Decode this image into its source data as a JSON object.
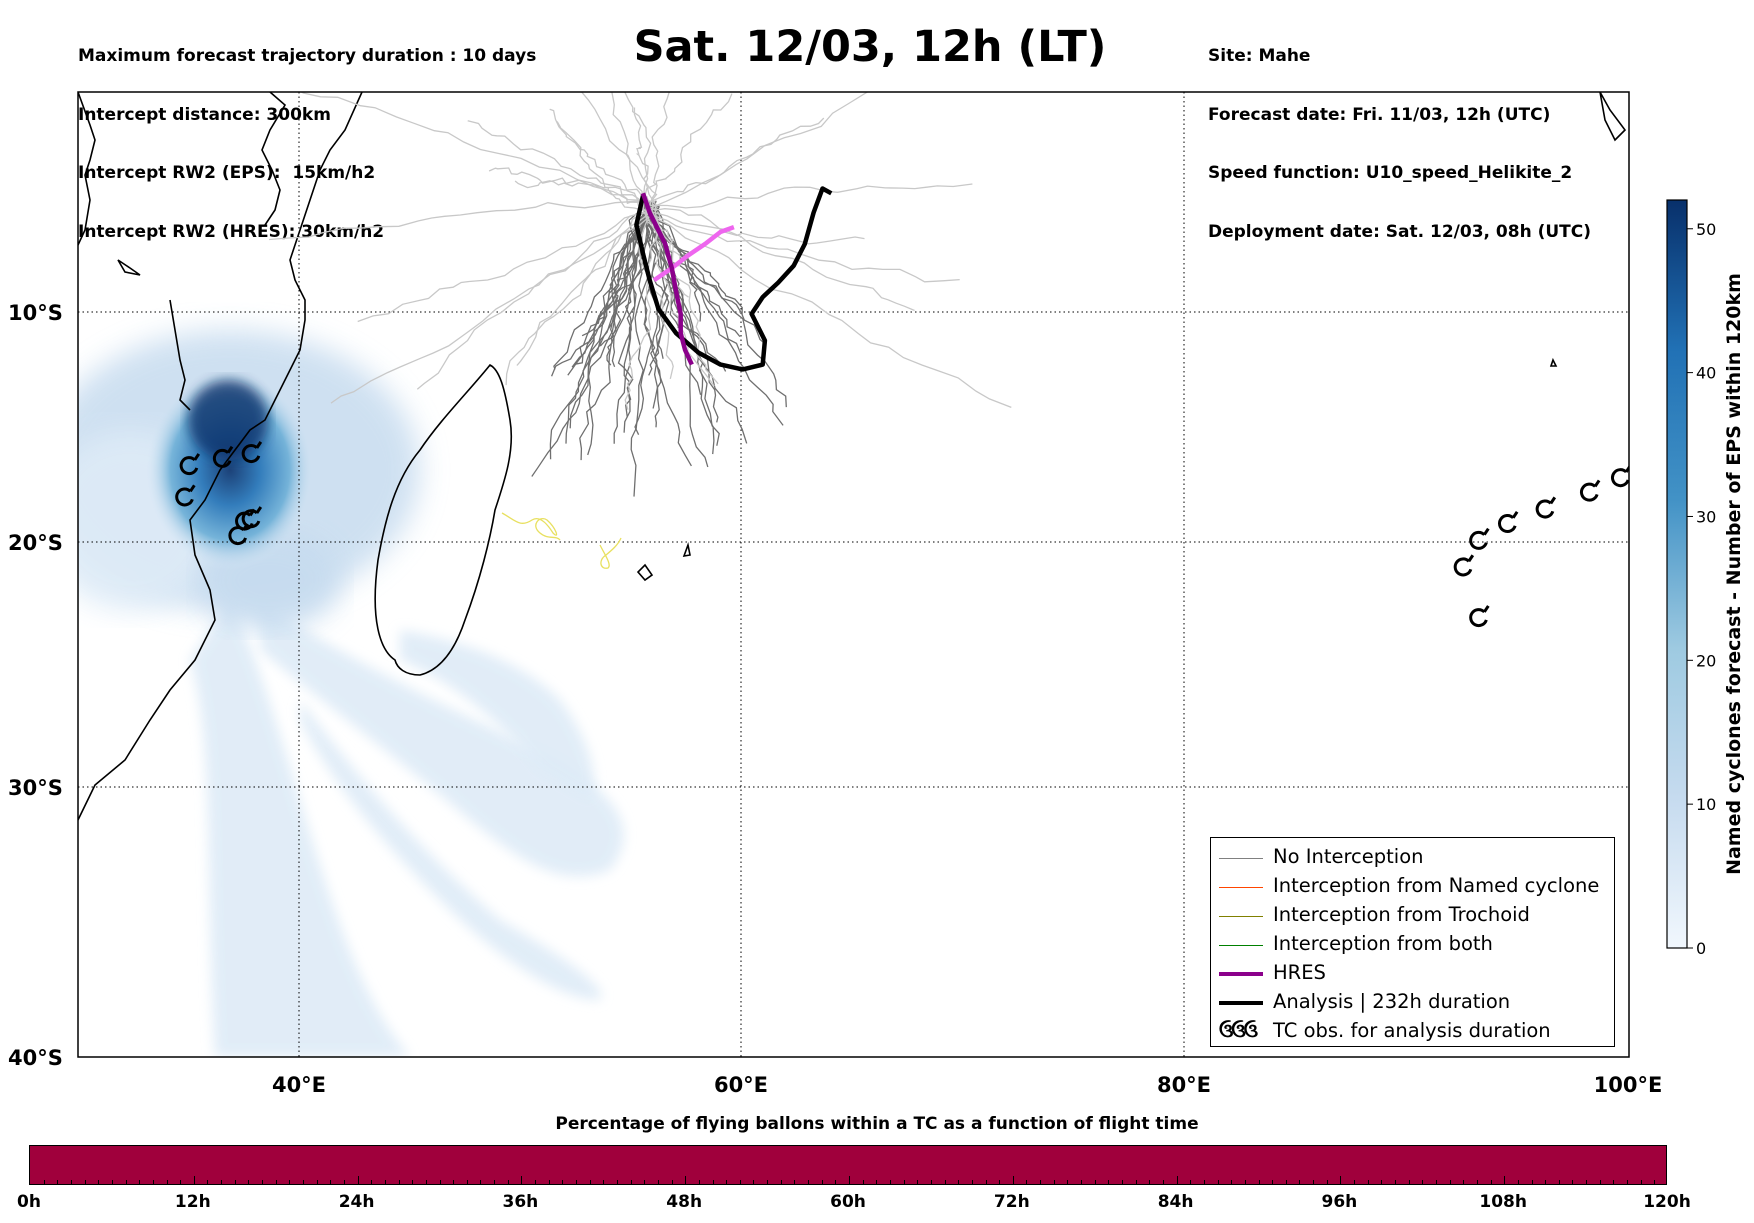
{
  "header_left": [
    "Maximum forecast trajectory duration : 10 days",
    "Intercept distance: 300km",
    "Intercept RW2 (EPS):  15km/h2",
    "Intercept RW2 (HRES): 30km/h2"
  ],
  "title": "Sat. 12/03, 12h (LT)",
  "header_right": [
    "Site: Mahe",
    "Forecast date: Fri. 11/03, 12h (UTC)",
    "Speed function: U10_speed_Helikite_2",
    "Deployment date: Sat. 12/03, 08h (UTC)"
  ],
  "map": {
    "lon_range": [
      30,
      100
    ],
    "lat_range": [
      -40,
      0
    ],
    "lat_ticks": [
      {
        "value": -10,
        "label": "10°S"
      },
      {
        "value": -20,
        "label": "20°S"
      },
      {
        "value": -30,
        "label": "30°S"
      },
      {
        "value": -40,
        "label": "40°S"
      }
    ],
    "lon_ticks": [
      {
        "value": 40,
        "label": "40°E"
      },
      {
        "value": 60,
        "label": "60°E"
      },
      {
        "value": 80,
        "label": "80°E"
      },
      {
        "value": 100,
        "label": "100°E"
      }
    ],
    "hres_track": [
      [
        55.5,
        -4.2
      ],
      [
        55.8,
        -5.0
      ],
      [
        56.5,
        -6.3
      ],
      [
        56.8,
        -7.3
      ],
      [
        57.0,
        -8.3
      ],
      [
        57.2,
        -9.2
      ],
      [
        57.2,
        -10.0
      ],
      [
        57.4,
        -10.7
      ],
      [
        57.7,
        -11.3
      ]
    ],
    "analysis_track": [
      [
        55.5,
        -4.3
      ],
      [
        55.2,
        -5.5
      ],
      [
        55.5,
        -6.7
      ],
      [
        55.8,
        -7.8
      ],
      [
        56.2,
        -9.0
      ],
      [
        57.0,
        -10.0
      ],
      [
        58.0,
        -10.8
      ],
      [
        59.0,
        -11.3
      ],
      [
        60.0,
        -11.5
      ],
      [
        60.9,
        -11.3
      ],
      [
        61.0,
        -10.3
      ],
      [
        60.4,
        -9.2
      ],
      [
        60.9,
        -8.5
      ],
      [
        61.6,
        -7.9
      ],
      [
        62.3,
        -7.2
      ],
      [
        62.8,
        -6.3
      ],
      [
        63.2,
        -5.0
      ],
      [
        63.6,
        -4.0
      ],
      [
        64.0,
        -4.2
      ]
    ],
    "eps_pink_track": [
      [
        56.0,
        -7.8
      ],
      [
        56.8,
        -7.3
      ],
      [
        57.5,
        -6.8
      ],
      [
        58.3,
        -6.3
      ],
      [
        59.0,
        -5.8
      ],
      [
        59.6,
        -5.6
      ]
    ],
    "tc_obs": [
      [
        35.0,
        -15.5
      ],
      [
        36.5,
        -15.2
      ],
      [
        37.8,
        -15.0
      ],
      [
        34.8,
        -16.8
      ],
      [
        37.5,
        -17.8
      ],
      [
        37.8,
        -17.7
      ],
      [
        37.2,
        -18.4
      ],
      [
        92.5,
        -19.7
      ],
      [
        93.2,
        -18.6
      ],
      [
        94.5,
        -17.9
      ],
      [
        96.2,
        -17.3
      ],
      [
        98.2,
        -16.6
      ],
      [
        99.6,
        -16.0
      ],
      [
        93.2,
        -21.8
      ]
    ]
  },
  "colorbar": {
    "title": "Named cyclones forecast - Number of EPS within 120km",
    "ticks": [
      "0",
      "10",
      "20",
      "30",
      "40",
      "50"
    ],
    "tick_values": [
      0,
      10,
      20,
      30,
      40,
      50
    ],
    "max": 52,
    "color_low": "#deebf7",
    "color_high": "#08306b"
  },
  "legend": {
    "items": [
      {
        "label": "No Interception",
        "color": "#808080"
      },
      {
        "label": "Interception from Named cyclone",
        "color": "#ff4500"
      },
      {
        "label": "Interception from Trochoid",
        "color": "#808000"
      },
      {
        "label": "Interception from both",
        "color": "#008000"
      },
      {
        "label": "HRES",
        "color": "#8b008b"
      },
      {
        "label": "Analysis | 232h duration",
        "color": "#000000"
      },
      {
        "label": "TC obs. for analysis duration",
        "color": "#000000"
      }
    ],
    "tc_symbol": "ઉઉઉ"
  },
  "bottom": {
    "title": "Percentage of flying ballons within a TC as a function of flight time",
    "bar_color": "#a0003c",
    "ticks": [
      "0h",
      "12h",
      "24h",
      "36h",
      "48h",
      "60h",
      "72h",
      "84h",
      "96h",
      "108h",
      "120h"
    ]
  }
}
